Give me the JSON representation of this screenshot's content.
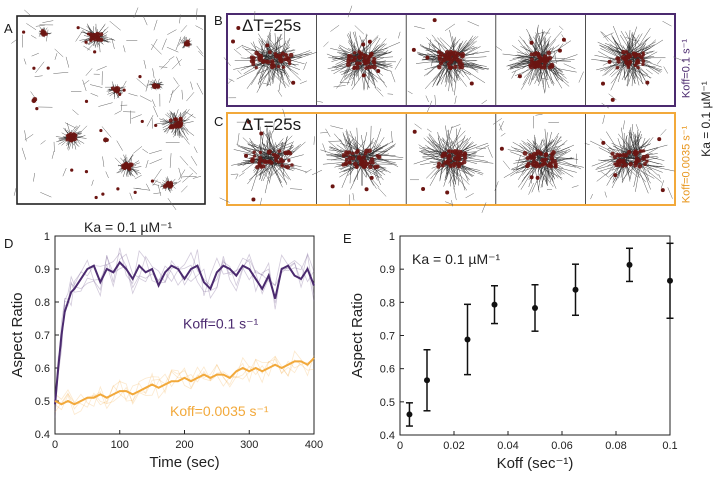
{
  "panels": {
    "a": "A",
    "b": "B",
    "c": "C",
    "d": "D",
    "e": "E"
  },
  "strip_b": {
    "dt_label": "ΔT=25s",
    "side_label": "Koff=0.1 s⁻¹",
    "color": "#4b2a6f"
  },
  "strip_c": {
    "dt_label": "ΔT=25s",
    "side_label": "Koff=0.0035 s⁻¹",
    "color": "#f2a93b"
  },
  "shared_side_label": "Ka = 0.1 µM⁻¹",
  "colors": {
    "purple": "#4b2a6f",
    "orange": "#f2a93b",
    "cluster": "#6b1512",
    "axis": "#222222"
  },
  "chart_data": [
    {
      "type": "line",
      "title": "Ka = 0.1 µM⁻¹",
      "xlabel": "Time (sec)",
      "ylabel": "Aspect Ratio",
      "xlim": [
        0,
        400
      ],
      "ylim": [
        0.4,
        1.0
      ],
      "xticks": [
        "0",
        "100",
        "200",
        "300",
        "400"
      ],
      "yticks": [
        "0.4",
        "0.5",
        "0.6",
        "0.7",
        "0.8",
        "0.9",
        "1"
      ],
      "series": [
        {
          "name": "Koff=0.1 s⁻¹",
          "color": "#4b2a6f",
          "x": [
            0,
            5,
            10,
            15,
            20,
            25,
            30,
            40,
            50,
            60,
            70,
            80,
            90,
            100,
            110,
            120,
            130,
            140,
            150,
            160,
            170,
            180,
            190,
            200,
            210,
            220,
            230,
            240,
            250,
            260,
            270,
            280,
            290,
            300,
            310,
            320,
            330,
            340,
            350,
            360,
            370,
            380,
            390,
            400
          ],
          "y": [
            0.49,
            0.6,
            0.7,
            0.77,
            0.8,
            0.83,
            0.84,
            0.87,
            0.9,
            0.91,
            0.86,
            0.9,
            0.89,
            0.92,
            0.9,
            0.87,
            0.91,
            0.89,
            0.9,
            0.85,
            0.89,
            0.91,
            0.9,
            0.87,
            0.9,
            0.91,
            0.86,
            0.84,
            0.89,
            0.91,
            0.9,
            0.88,
            0.91,
            0.9,
            0.87,
            0.84,
            0.88,
            0.81,
            0.9,
            0.91,
            0.88,
            0.87,
            0.9,
            0.85
          ]
        },
        {
          "name": "Koff=0.0035 s⁻¹",
          "color": "#f2a93b",
          "x": [
            0,
            10,
            20,
            30,
            40,
            50,
            60,
            70,
            80,
            90,
            100,
            110,
            120,
            130,
            140,
            150,
            160,
            170,
            180,
            190,
            200,
            210,
            220,
            230,
            240,
            250,
            260,
            270,
            280,
            290,
            300,
            310,
            320,
            330,
            340,
            350,
            360,
            370,
            380,
            390,
            400
          ],
          "y": [
            0.5,
            0.49,
            0.5,
            0.49,
            0.5,
            0.51,
            0.51,
            0.52,
            0.51,
            0.52,
            0.53,
            0.53,
            0.52,
            0.53,
            0.54,
            0.55,
            0.54,
            0.55,
            0.56,
            0.56,
            0.57,
            0.56,
            0.57,
            0.58,
            0.57,
            0.58,
            0.58,
            0.57,
            0.59,
            0.6,
            0.59,
            0.6,
            0.59,
            0.6,
            0.61,
            0.6,
            0.61,
            0.62,
            0.62,
            0.61,
            0.63
          ]
        }
      ]
    },
    {
      "type": "scatter",
      "title": "Ka = 0.1 µM⁻¹",
      "xlabel": "Koff (sec⁻¹)",
      "ylabel": "Aspect Ratio",
      "xlim": [
        0,
        0.1
      ],
      "ylim": [
        0.4,
        1.0
      ],
      "xticks": [
        "0",
        "0.02",
        "0.04",
        "0.06",
        "0.08",
        "0.1"
      ],
      "yticks": [
        "0.4",
        "0.5",
        "0.6",
        "0.7",
        "0.8",
        "0.9",
        "1"
      ],
      "points": [
        {
          "x": 0.0035,
          "y": 0.462,
          "err": 0.035
        },
        {
          "x": 0.01,
          "y": 0.565,
          "err": 0.092
        },
        {
          "x": 0.025,
          "y": 0.688,
          "err": 0.106
        },
        {
          "x": 0.035,
          "y": 0.793,
          "err": 0.057
        },
        {
          "x": 0.05,
          "y": 0.783,
          "err": 0.07
        },
        {
          "x": 0.065,
          "y": 0.838,
          "err": 0.077
        },
        {
          "x": 0.085,
          "y": 0.913,
          "err": 0.05
        },
        {
          "x": 0.1,
          "y": 0.865,
          "err": 0.113
        }
      ]
    }
  ]
}
